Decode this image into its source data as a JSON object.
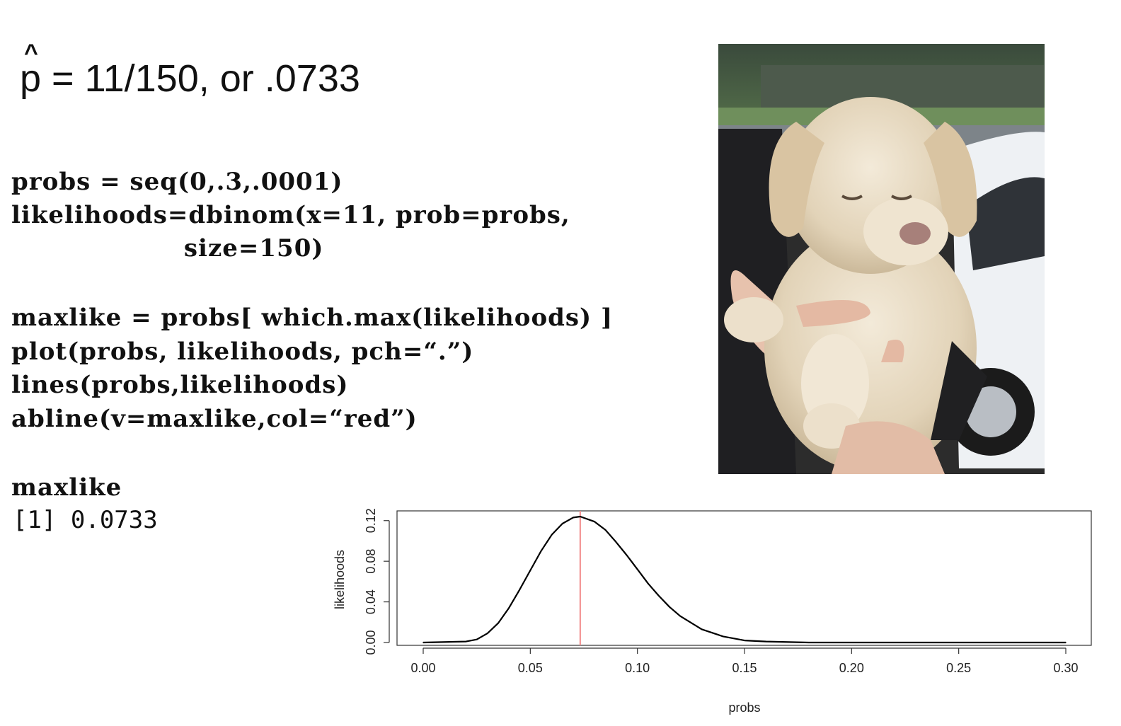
{
  "formula": {
    "hat": "^",
    "p": "p",
    "rest": " = 11/150, or .0733"
  },
  "code_lines": [
    "probs = seq(0,.3,.0001)",
    "likelihoods=dbinom(x=11, prob=probs,",
    "                   size=150)",
    "maxlike = probs[ which.max(likelihoods) ]",
    "plot(probs, likelihoods, pch=“.”)",
    "lines(probs,likelihoods)",
    "abline(v=maxlike,col=“red”)",
    "maxlike"
  ],
  "output": "[1] 0.0733",
  "photo": {
    "subject": "cream labrador puppy held in hands"
  },
  "chart_data": {
    "type": "line",
    "x": [
      0.0,
      0.02,
      0.025,
      0.03,
      0.035,
      0.04,
      0.045,
      0.05,
      0.055,
      0.06,
      0.065,
      0.07,
      0.0733,
      0.08,
      0.085,
      0.09,
      0.095,
      0.1,
      0.105,
      0.11,
      0.115,
      0.12,
      0.13,
      0.14,
      0.15,
      0.16,
      0.18,
      0.2,
      0.25,
      0.3
    ],
    "y": [
      0.0,
      0.001,
      0.003,
      0.009,
      0.019,
      0.034,
      0.052,
      0.071,
      0.09,
      0.106,
      0.117,
      0.123,
      0.124,
      0.119,
      0.111,
      0.099,
      0.086,
      0.072,
      0.058,
      0.046,
      0.035,
      0.026,
      0.013,
      0.006,
      0.002,
      0.001,
      0.0,
      0.0,
      0.0,
      0.0
    ],
    "xlabel": "probs",
    "ylabel": "likelihoods",
    "xlim": [
      0,
      0.3
    ],
    "ylim": [
      0,
      0.124
    ],
    "xticks": [
      "0.00",
      "0.05",
      "0.10",
      "0.15",
      "0.20",
      "0.25",
      "0.30"
    ],
    "yticks": [
      "0.00",
      "0.04",
      "0.08",
      "0.12"
    ],
    "vline": {
      "x": 0.0733,
      "color": "#f28b8b"
    },
    "line_color": "#000000",
    "grid": false
  }
}
